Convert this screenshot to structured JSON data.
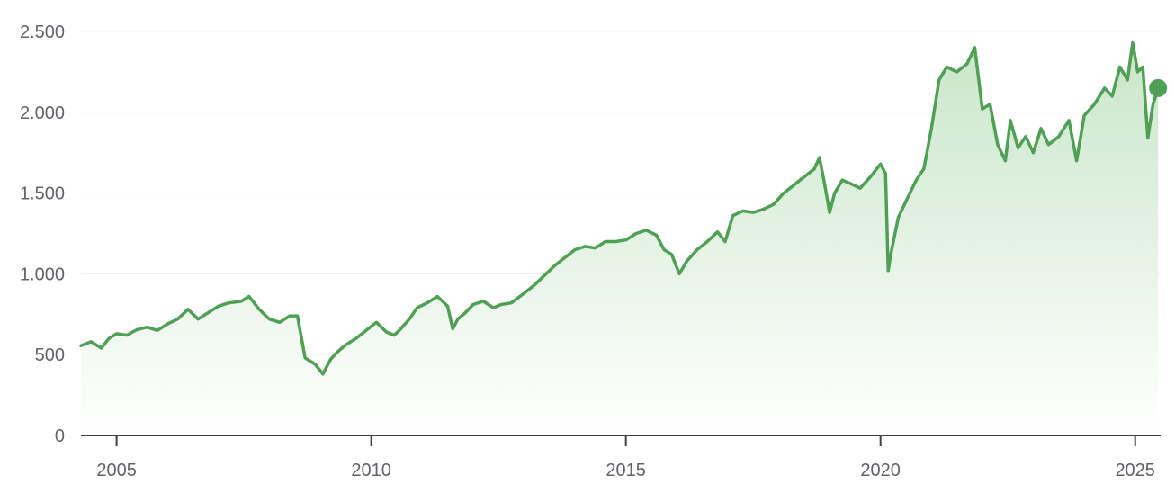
{
  "colors": {
    "line": "#4f9f55",
    "fill_top": "#c9e6c9",
    "fill_bottom": "#ffffff",
    "grid": "#eceff1",
    "axis": "#3c4043",
    "text": "#5f6368"
  },
  "chart_data": {
    "type": "area",
    "title": "",
    "xlabel": "",
    "ylabel": "",
    "grid": true,
    "xlim": [
      2004.3,
      2025.5
    ],
    "ylim": [
      0,
      2500
    ],
    "y_ticks": [
      0,
      500,
      1000,
      1500,
      2000,
      2500
    ],
    "y_tick_labels": [
      "0",
      "500",
      "1.000",
      "1.500",
      "2.000",
      "2.500"
    ],
    "x_ticks": [
      2005,
      2010,
      2015,
      2020,
      2025
    ],
    "x_tick_labels": [
      "2005",
      "2010",
      "2015",
      "2020",
      "2025"
    ],
    "end_marker": true,
    "series": [
      {
        "x": [
          2004.3,
          2004.5,
          2004.7,
          2004.85,
          2005.0,
          2005.2,
          2005.4,
          2005.6,
          2005.8,
          2006.0,
          2006.2,
          2006.4,
          2006.6,
          2006.8,
          2007.0,
          2007.2,
          2007.45,
          2007.6,
          2007.8,
          2008.0,
          2008.2,
          2008.4,
          2008.55,
          2008.7,
          2008.8,
          2008.9,
          2009.05,
          2009.2,
          2009.35,
          2009.5,
          2009.7,
          2009.9,
          2010.1,
          2010.3,
          2010.45,
          2010.55,
          2010.75,
          2010.9,
          2011.1,
          2011.3,
          2011.5,
          2011.6,
          2011.7,
          2011.85,
          2012.0,
          2012.2,
          2012.4,
          2012.55,
          2012.75,
          2013.0,
          2013.2,
          2013.4,
          2013.6,
          2013.8,
          2014.0,
          2014.2,
          2014.4,
          2014.6,
          2014.8,
          2015.0,
          2015.2,
          2015.4,
          2015.6,
          2015.75,
          2015.9,
          2016.05,
          2016.2,
          2016.4,
          2016.6,
          2016.8,
          2016.95,
          2017.1,
          2017.3,
          2017.5,
          2017.7,
          2017.9,
          2018.1,
          2018.3,
          2018.5,
          2018.7,
          2018.8,
          2018.9,
          2019.0,
          2019.1,
          2019.25,
          2019.4,
          2019.6,
          2019.8,
          2020.0,
          2020.1,
          2020.15,
          2020.22,
          2020.35,
          2020.5,
          2020.7,
          2020.85,
          2021.0,
          2021.15,
          2021.3,
          2021.5,
          2021.7,
          2021.85,
          2022.0,
          2022.15,
          2022.3,
          2022.45,
          2022.55,
          2022.7,
          2022.85,
          2023.0,
          2023.15,
          2023.3,
          2023.5,
          2023.7,
          2023.85,
          2024.0,
          2024.2,
          2024.4,
          2024.55,
          2024.7,
          2024.85,
          2024.95,
          2025.05,
          2025.15,
          2025.25,
          2025.35,
          2025.45
        ],
        "values": [
          555,
          580,
          540,
          600,
          630,
          620,
          655,
          670,
          650,
          690,
          720,
          780,
          720,
          760,
          800,
          820,
          830,
          860,
          780,
          720,
          700,
          740,
          740,
          480,
          460,
          440,
          380,
          470,
          520,
          560,
          600,
          650,
          700,
          640,
          620,
          650,
          720,
          790,
          820,
          860,
          800,
          660,
          720,
          760,
          810,
          830,
          790,
          810,
          820,
          880,
          930,
          990,
          1050,
          1100,
          1150,
          1170,
          1160,
          1200,
          1200,
          1210,
          1250,
          1270,
          1240,
          1150,
          1120,
          1000,
          1080,
          1150,
          1200,
          1260,
          1200,
          1360,
          1390,
          1380,
          1400,
          1430,
          1500,
          1550,
          1600,
          1650,
          1720,
          1560,
          1380,
          1500,
          1580,
          1560,
          1530,
          1600,
          1680,
          1620,
          1020,
          1150,
          1350,
          1450,
          1580,
          1650,
          1900,
          2200,
          2280,
          2250,
          2300,
          2400,
          2020,
          2050,
          1800,
          1700,
          1950,
          1780,
          1850,
          1750,
          1900,
          1800,
          1850,
          1950,
          1700,
          1980,
          2050,
          2150,
          2100,
          2280,
          2200,
          2430,
          2250,
          2280,
          1840,
          2050,
          2150
        ]
      }
    ]
  }
}
